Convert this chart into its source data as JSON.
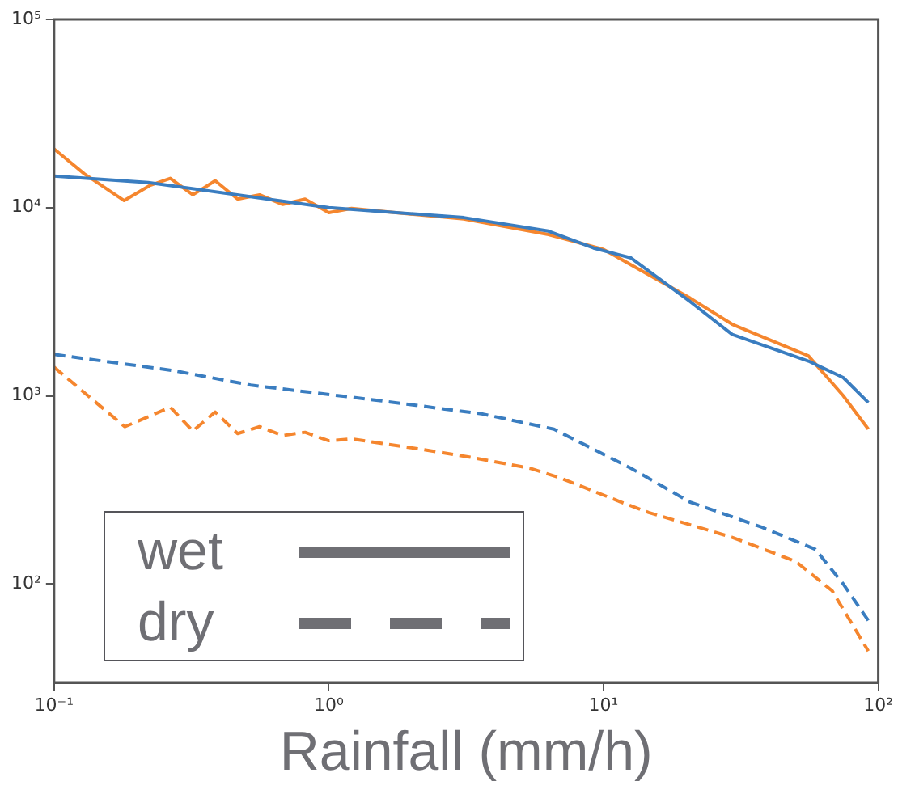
{
  "chart_data": {
    "type": "line",
    "xlabel": "Rainfall (mm/h)",
    "log": "xy",
    "grid": false,
    "legend": false,
    "marker": "none",
    "xlim": [
      0.1,
      100
    ],
    "xticks": [
      {
        "value": 0.1,
        "label": "10⁻¹"
      },
      {
        "value": 1,
        "label": "10⁰"
      },
      {
        "value": 10,
        "label": "10¹"
      },
      {
        "value": 100,
        "label": "10²"
      }
    ],
    "ylim": [
      30,
      100000
    ],
    "yticks": [
      {
        "value": 100,
        "label": "10²"
      },
      {
        "value": 1000,
        "label": "10³"
      },
      {
        "value": 10000,
        "label": "10⁴"
      },
      {
        "value": 100000,
        "label": "10⁵"
      }
    ],
    "annotations": [
      "wet",
      "dry"
    ],
    "series": [
      {
        "color": "#3a7dc0",
        "line_style": "solid",
        "x": [
          0.1,
          0.22,
          1,
          3.1,
          6.3,
          9.2,
          12.6,
          20.7,
          29.4,
          55.7,
          74.6,
          92
        ],
        "values": [
          14700,
          13600,
          10000,
          8850,
          7500,
          6100,
          5400,
          3160,
          2120,
          1530,
          1250,
          920
        ]
      },
      {
        "color": "#f5862e",
        "line_style": "solid",
        "x": [
          0.1,
          0.129,
          0.18,
          0.223,
          0.265,
          0.32,
          0.386,
          0.466,
          0.56,
          0.68,
          0.82,
          1.0,
          1.21,
          3.1,
          6.3,
          10,
          20.7,
          29.4,
          55.7,
          74.6,
          92
        ],
        "values": [
          20500,
          15100,
          10900,
          13100,
          14300,
          11700,
          13900,
          11100,
          11700,
          10400,
          11100,
          9400,
          9900,
          8700,
          7200,
          6000,
          3300,
          2400,
          1630,
          1000,
          665
        ]
      },
      {
        "color": "#3a7dc0",
        "line_style": "dashed",
        "x": [
          0.1,
          0.273,
          0.52,
          1.56,
          3.64,
          6.6,
          12.6,
          20.7,
          37.8,
          59,
          74.6,
          92
        ],
        "values": [
          1660,
          1360,
          1140,
          940,
          800,
          665,
          412,
          272,
          200,
          153,
          100,
          64
        ]
      },
      {
        "color": "#f5862e",
        "line_style": "dashed",
        "x": [
          0.1,
          0.181,
          0.265,
          0.32,
          0.386,
          0.466,
          0.56,
          0.68,
          0.82,
          1.0,
          1.21,
          2.08,
          3.3,
          5.4,
          6.9,
          11.4,
          14.6,
          29.4,
          50,
          68,
          92
        ],
        "values": [
          1420,
          685,
          870,
          650,
          820,
          630,
          685,
          615,
          640,
          577,
          590,
          525,
          471,
          412,
          368,
          275,
          240,
          177,
          132,
          92,
          44
        ]
      }
    ]
  }
}
